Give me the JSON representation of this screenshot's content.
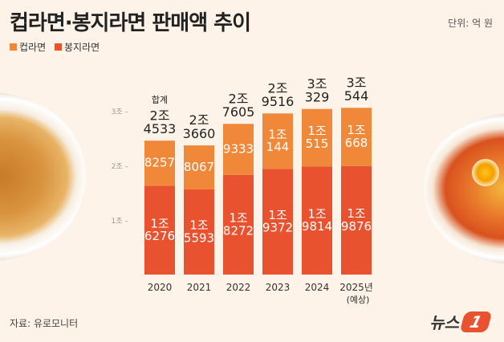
{
  "header": {
    "title": "컵라면·봉지라면 판매액 추이",
    "unit": "단위: 억 원"
  },
  "source": "자료: 유로모니터",
  "logo": {
    "text": "뉴스",
    "mark": "1"
  },
  "colors": {
    "cup": "#F0883A",
    "bag": "#E8522F",
    "background": "#FDF3E8"
  },
  "chart_data": {
    "type": "bar",
    "stacked": true,
    "categories": [
      "2020",
      "2021",
      "2022",
      "2023",
      "2024",
      "2025년"
    ],
    "category_sublabels": [
      "",
      "",
      "",
      "",
      "",
      "(예상)"
    ],
    "series": [
      {
        "name": "봉지라면",
        "values": [
          16276,
          15593,
          18272,
          19372,
          19814,
          19876
        ],
        "labels": [
          [
            "1조",
            "6276"
          ],
          [
            "1조",
            "5593"
          ],
          [
            "1조",
            "8272"
          ],
          [
            "1조",
            "9372"
          ],
          [
            "1조",
            "9814"
          ],
          [
            "1조",
            "9876"
          ]
        ]
      },
      {
        "name": "컵라면",
        "values": [
          8257,
          8067,
          9333,
          10144,
          10515,
          10668
        ],
        "labels": [
          [
            "8257"
          ],
          [
            "8067"
          ],
          [
            "9333"
          ],
          [
            "1조",
            "144"
          ],
          [
            "1조",
            "515"
          ],
          [
            "1조",
            "668"
          ]
        ]
      }
    ],
    "totals": [
      24533,
      23660,
      27605,
      29516,
      30329,
      30544
    ],
    "total_labels": [
      [
        "2조",
        "4533"
      ],
      [
        "2조",
        "3660"
      ],
      [
        "2조",
        "7605"
      ],
      [
        "2조",
        "9516"
      ],
      [
        "3조",
        "329"
      ],
      [
        "3조",
        "544"
      ]
    ],
    "total_caption": "합계",
    "yticks": [
      {
        "value": 10000,
        "label": "1조 –"
      },
      {
        "value": 20000,
        "label": "2조 –"
      },
      {
        "value": 30000,
        "label": "3조 –"
      }
    ],
    "ylim": [
      0,
      30000
    ],
    "legend": "top-left",
    "grid": false
  }
}
